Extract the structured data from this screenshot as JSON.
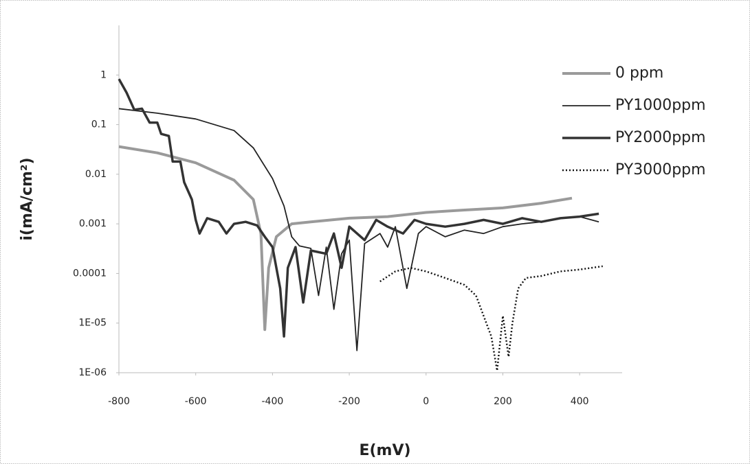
{
  "chart_data": {
    "type": "line",
    "x_label": "E(mV)",
    "y_label": "i(mA/cm²)",
    "xlim": [
      -800,
      500
    ],
    "xticks": [
      -800,
      -600,
      -400,
      -200,
      0,
      200,
      400
    ],
    "ylim": [
      1e-06,
      10
    ],
    "ylog": true,
    "yticks": [
      {
        "value": 1e-06,
        "label": "1E-06"
      },
      {
        "value": 1e-05,
        "label": "1E-05"
      },
      0.0001,
      0.001,
      0.01,
      0.1,
      1
    ],
    "grid": false,
    "legend": "upper right",
    "series": [
      {
        "name": "0 ppm",
        "color": "#9a9a9a",
        "width": 4,
        "dash": "none",
        "x": [
          -800,
          -700,
          -600,
          -500,
          -450,
          -430,
          -420,
          -410,
          -390,
          -350,
          -300,
          -200,
          -100,
          0,
          100,
          200,
          300,
          380
        ],
        "values": [
          0.036,
          0.027,
          0.017,
          0.0076,
          0.0031,
          0.00063,
          7.4e-06,
          0.00013,
          0.00055,
          0.001,
          0.0011,
          0.0013,
          0.0014,
          0.0017,
          0.0019,
          0.0021,
          0.0026,
          0.0033
        ]
      },
      {
        "name": "PY1000ppm",
        "color": "#222222",
        "width": 1.8,
        "dash": "none",
        "x": [
          -800,
          -700,
          -600,
          -500,
          -450,
          -400,
          -370,
          -350,
          -330,
          -300,
          -280,
          -260,
          -240,
          -220,
          -200,
          -180,
          -160,
          -120,
          -100,
          -80,
          -50,
          -20,
          0,
          50,
          100,
          150,
          200,
          250,
          300,
          350,
          400,
          450
        ],
        "values": [
          0.21,
          0.17,
          0.13,
          0.076,
          0.034,
          0.0082,
          0.0023,
          0.00055,
          0.00036,
          0.00032,
          3.6e-05,
          0.00034,
          1.9e-05,
          0.00025,
          0.00047,
          2.8e-06,
          0.0004,
          0.00064,
          0.00034,
          0.00088,
          5e-05,
          0.00064,
          0.00088,
          0.00055,
          0.00075,
          0.00064,
          0.00088,
          0.001,
          0.0011,
          0.0013,
          0.0014,
          0.0011
        ]
      },
      {
        "name": "PY2000ppm",
        "color": "#333333",
        "width": 3.5,
        "dash": "none",
        "x": [
          -800,
          -780,
          -760,
          -740,
          -720,
          -700,
          -690,
          -670,
          -660,
          -640,
          -630,
          -610,
          -600,
          -590,
          -570,
          -540,
          -520,
          -500,
          -470,
          -440,
          -420,
          -400,
          -380,
          -370,
          -360,
          -340,
          -320,
          -300,
          -260,
          -240,
          -220,
          -200,
          -160,
          -130,
          -100,
          -60,
          -30,
          0,
          50,
          100,
          150,
          200,
          250,
          300,
          350,
          400,
          450
        ],
        "values": [
          0.83,
          0.44,
          0.2,
          0.21,
          0.11,
          0.11,
          0.065,
          0.059,
          0.018,
          0.018,
          0.0069,
          0.0031,
          0.0012,
          0.00064,
          0.0013,
          0.0011,
          0.00064,
          0.001,
          0.0011,
          0.00093,
          0.00055,
          0.00034,
          5e-05,
          5.4e-06,
          0.00013,
          0.00034,
          2.6e-05,
          0.00029,
          0.00025,
          0.00064,
          0.00013,
          0.00088,
          0.00047,
          0.0012,
          0.00088,
          0.00064,
          0.0012,
          0.001,
          0.00088,
          0.001,
          0.0012,
          0.001,
          0.0013,
          0.0011,
          0.0013,
          0.0014,
          0.0016
        ]
      },
      {
        "name": "PY3000ppm",
        "color": "#111111",
        "width": 2.5,
        "dash": "2 3",
        "x": [
          -120,
          -80,
          -40,
          0,
          50,
          100,
          130,
          150,
          170,
          185,
          200,
          215,
          225,
          240,
          260,
          300,
          350,
          400,
          460
        ],
        "values": [
          6.9e-05,
          0.00011,
          0.00013,
          0.00011,
          8.1e-05,
          5.9e-05,
          3.6e-05,
          1.4e-05,
          5.4e-06,
          1.1e-06,
          1.4e-05,
          2.1e-06,
          1e-05,
          5e-05,
          8.1e-05,
          8.9e-05,
          0.00011,
          0.00012,
          0.00014
        ]
      }
    ]
  }
}
